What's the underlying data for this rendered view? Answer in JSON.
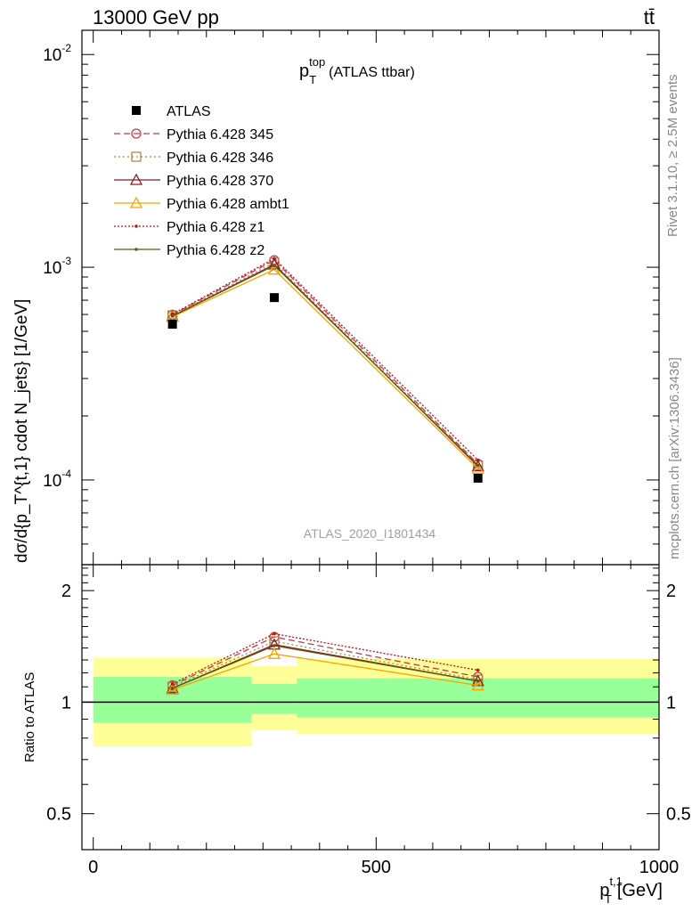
{
  "header": {
    "energy_label": "13000 GeV pp",
    "process_label": "tt̄",
    "analysis_tag": "ATLAS_2020_I1801434",
    "rivet_label": "Rivet 3.1.10, ≥ 2.5M events",
    "site_label": "mcplots.cern.ch [arXiv:1306.3436]"
  },
  "plot_title": {
    "main": "p",
    "sup": "top",
    "sub": "T",
    "suffix": "(ATLAS ttbar)"
  },
  "axes": {
    "ylabel_main": "dσ/d{p_T^{t,1} cdot N_jets} [1/GeV]",
    "ylabel_ratio": "Ratio to ATLAS",
    "xlabel_main": "p",
    "xlabel_sup": "t,1",
    "xlabel_sub": "T",
    "xlabel_unit": "[GeV]"
  },
  "colors": {
    "data": "#000000",
    "band_outer": "#ffff99",
    "band_inner": "#99ff99",
    "p345": "#c13b48",
    "p346": "#a08c48",
    "p370": "#8b1a24",
    "pambt1": "#f5a300",
    "pz1": "#c41010",
    "pz2": "#5a5a10"
  },
  "chart_data": [
    {
      "type": "line",
      "panel": "main",
      "scale": "log",
      "xlim": [
        -20,
        1000
      ],
      "ylim": [
        4e-05,
        0.013
      ],
      "xticks": [
        0,
        500,
        1000
      ],
      "yticks": [
        {
          "value": 0.01,
          "base": "10",
          "exp": "-2"
        },
        {
          "value": 0.001,
          "base": "10",
          "exp": "-3"
        },
        {
          "value": 0.0001,
          "base": "10",
          "exp": "-4"
        }
      ],
      "x": [
        140,
        320,
        680
      ],
      "data_points": {
        "name": "ATLAS",
        "x": [
          140,
          320,
          680
        ],
        "y": [
          0.00054,
          0.00072,
          0.000102
        ],
        "xerr": [
          [
            0,
            280
          ],
          [
            280,
            360
          ],
          [
            360,
            1000
          ]
        ]
      },
      "series": [
        {
          "name": "Pythia 6.428 345",
          "key": "p345",
          "marker": "circle",
          "dash": "7,4",
          "values": [
            0.000598,
            0.00108,
            0.000119
          ]
        },
        {
          "name": "Pythia 6.428 346",
          "key": "p346",
          "marker": "square",
          "dash": "2,3",
          "values": [
            0.000594,
            0.00105,
            0.000117
          ]
        },
        {
          "name": "Pythia 6.428 370",
          "key": "p370",
          "marker": "triangle",
          "dash": "",
          "values": [
            0.00059,
            0.00103,
            0.000116
          ]
        },
        {
          "name": "Pythia 6.428 ambt1",
          "key": "pambt1",
          "marker": "triangle",
          "dash": "",
          "values": [
            0.000585,
            0.000975,
            0.000113
          ]
        },
        {
          "name": "Pythia 6.428 z1",
          "key": "pz1",
          "marker": "dot",
          "dash": "2,2",
          "values": [
            0.000602,
            0.0011,
            0.000124
          ]
        },
        {
          "name": "Pythia 6.428 z2",
          "key": "pz2",
          "marker": "dot",
          "dash": "",
          "values": [
            0.000589,
            0.00102,
            0.000117
          ]
        }
      ]
    },
    {
      "type": "line",
      "panel": "ratio",
      "scale": "log",
      "xlim": [
        -20,
        1000
      ],
      "ylim": [
        0.4,
        2.35
      ],
      "yticks": [
        {
          "value": 0.5,
          "label": "0.5"
        },
        {
          "value": 1,
          "label": "1"
        },
        {
          "value": 2,
          "label": "2"
        }
      ],
      "reference": 1,
      "bands": [
        {
          "x": [
            0,
            280
          ],
          "outer": [
            0.76,
            1.32
          ],
          "inner": [
            0.88,
            1.17
          ]
        },
        {
          "x": [
            280,
            360
          ],
          "outer": [
            0.84,
            1.25
          ],
          "inner": [
            0.93,
            1.12
          ]
        },
        {
          "x": [
            360,
            1000
          ],
          "outer": [
            0.82,
            1.31
          ],
          "inner": [
            0.91,
            1.16
          ]
        }
      ],
      "x": [
        140,
        320,
        680
      ],
      "series": [
        {
          "name": "Pythia 6.428 345",
          "key": "p345",
          "values": [
            1.11,
            1.5,
            1.17
          ]
        },
        {
          "name": "Pythia 6.428 346",
          "key": "p346",
          "values": [
            1.1,
            1.46,
            1.15
          ]
        },
        {
          "name": "Pythia 6.428 370",
          "key": "p370",
          "values": [
            1.09,
            1.43,
            1.14
          ]
        },
        {
          "name": "Pythia 6.428 ambt1",
          "key": "pambt1",
          "values": [
            1.08,
            1.35,
            1.11
          ]
        },
        {
          "name": "Pythia 6.428 z1",
          "key": "pz1",
          "values": [
            1.12,
            1.53,
            1.22
          ]
        },
        {
          "name": "Pythia 6.428 z2",
          "key": "pz2",
          "values": [
            1.09,
            1.42,
            1.14
          ]
        }
      ]
    }
  ]
}
